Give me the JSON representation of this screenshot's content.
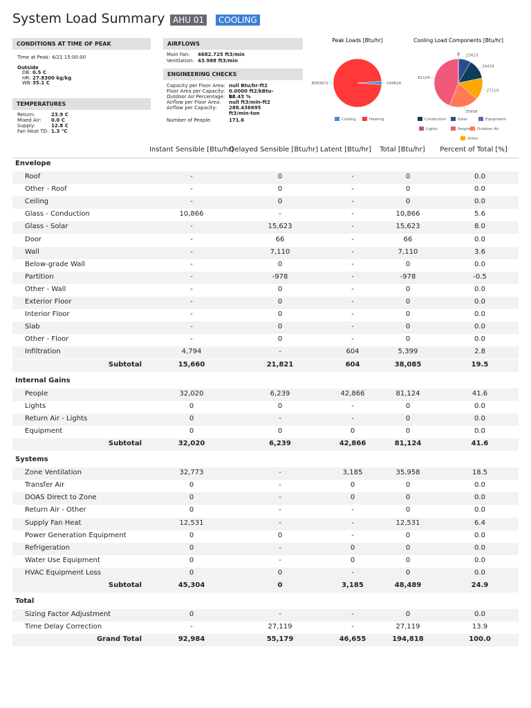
{
  "header": {
    "title": "System Load Summary",
    "badges": [
      "AHU 01",
      "COOLING"
    ]
  },
  "conditions": {
    "title": "CONDITIONS AT TIME OF PEAK",
    "time": "Time at Peak: 4/21 15:00:00",
    "outside_title": "Outside",
    "rows": [
      [
        "DB:",
        "0.5 C"
      ],
      [
        "HR:",
        "27.8300 kg/kg"
      ],
      [
        "WB:",
        "35.1 C"
      ]
    ]
  },
  "temperatures": {
    "title": "TEMPERATURES",
    "rows": [
      [
        "Return:",
        "23.9 C"
      ],
      [
        "Mixed Air:",
        "0.0 C"
      ],
      [
        "Supply:",
        "12.8 C"
      ],
      [
        "Fan Heat TD:",
        "1.3 °C"
      ]
    ]
  },
  "airflows": {
    "title": "AIRFLOWS",
    "rows": [
      [
        "Main Fan:",
        "4682.725 ft3/min"
      ],
      [
        "Ventilation:",
        "43.988 ft3/min"
      ]
    ]
  },
  "engineering_checks": {
    "title": "ENGINEERING CHECKS",
    "rows": [
      [
        "Capacity per Floor Area:",
        "null Btu/hr-ft2"
      ],
      [
        "Floor Area per Capacity:",
        "0.0000 ft2/kBtu-hr"
      ],
      [
        "Outdoor Air Percentage:",
        "23.43 %"
      ],
      [
        "Airflow per Floor Area:",
        "null ft3/min-ft2"
      ],
      [
        "Airflow per Capacity:",
        "288.436695 ft3/min-ton"
      ],
      [
        "Number of People:",
        "171.6"
      ]
    ]
  },
  "chart_data": [
    {
      "type": "pie",
      "title": "Peak Loads [Btu/hr]",
      "categories": [
        "Cooling",
        "Heating"
      ],
      "values": [
        194818,
        8583672
      ],
      "colors": [
        "#3d8ee0",
        "#ff3838"
      ]
    },
    {
      "type": "pie",
      "title": "Cooling Load Components [Btu/hr]",
      "categories": [
        "Conduction",
        "Solar",
        "Equipment",
        "Lights",
        "People",
        "Outdoor Air",
        "Other"
      ],
      "values": [
        24439,
        15623,
        0,
        0,
        81124,
        35958,
        27119
      ],
      "colors": [
        "#0d3d5a",
        "#2f4b8f",
        "#7a5aa6",
        "#c0509a",
        "#f0587a",
        "#ff7b55",
        "#ffa600"
      ]
    }
  ],
  "table": {
    "columns": [
      "Instant Sensible [Btu/hr]",
      "Delayed Sensible [Btu/hr]",
      "Latent [Btu/hr]",
      "Total [Btu/hr]",
      "Percent of Total [%]"
    ],
    "sections": [
      {
        "title": "Envelope",
        "rows": [
          [
            "Roof",
            "-",
            "0",
            "-",
            "0",
            "0.0"
          ],
          [
            "Other - Roof",
            "-",
            "0",
            "-",
            "0",
            "0.0"
          ],
          [
            "Ceiling",
            "-",
            "0",
            "-",
            "0",
            "0.0"
          ],
          [
            "Glass - Conduction",
            "10,866",
            "-",
            "-",
            "10,866",
            "5.6"
          ],
          [
            "Glass - Solar",
            "-",
            "15,623",
            "-",
            "15,623",
            "8.0"
          ],
          [
            "Door",
            "-",
            "66",
            "-",
            "66",
            "0.0"
          ],
          [
            "Wall",
            "-",
            "7,110",
            "-",
            "7,110",
            "3.6"
          ],
          [
            "Below-grade Wall",
            "-",
            "0",
            "-",
            "0",
            "0.0"
          ],
          [
            "Partition",
            "-",
            "-978",
            "-",
            "-978",
            "-0.5"
          ],
          [
            "Other - Wall",
            "-",
            "0",
            "-",
            "0",
            "0.0"
          ],
          [
            "Exterior Floor",
            "-",
            "0",
            "-",
            "0",
            "0.0"
          ],
          [
            "Interior Floor",
            "-",
            "0",
            "-",
            "0",
            "0.0"
          ],
          [
            "Slab",
            "-",
            "0",
            "-",
            "0",
            "0.0"
          ],
          [
            "Other - Floor",
            "-",
            "0",
            "-",
            "0",
            "0.0"
          ],
          [
            "Infiltration",
            "4,794",
            "-",
            "604",
            "5,399",
            "2.8"
          ]
        ],
        "subtotal": [
          "Subtotal",
          "15,660",
          "21,821",
          "604",
          "38,085",
          "19.5"
        ]
      },
      {
        "title": "Internal Gains",
        "rows": [
          [
            "People",
            "32,020",
            "6,239",
            "42,866",
            "81,124",
            "41.6"
          ],
          [
            "Lights",
            "0",
            "0",
            "-",
            "0",
            "0.0"
          ],
          [
            "Return Air - Lights",
            "0",
            "-",
            "-",
            "0",
            "0.0"
          ],
          [
            "Equipment",
            "0",
            "0",
            "0",
            "0",
            "0.0"
          ]
        ],
        "subtotal": [
          "Subtotal",
          "32,020",
          "6,239",
          "42,866",
          "81,124",
          "41.6"
        ]
      },
      {
        "title": "Systems",
        "rows": [
          [
            "Zone Ventilation",
            "32,773",
            "-",
            "3,185",
            "35,958",
            "18.5"
          ],
          [
            "Transfer Air",
            "0",
            "-",
            "0",
            "0",
            "0.0"
          ],
          [
            "DOAS Direct to Zone",
            "0",
            "-",
            "0",
            "0",
            "0.0"
          ],
          [
            "Return Air - Other",
            "0",
            "-",
            "-",
            "0",
            "0.0"
          ],
          [
            "Supply Fan Heat",
            "12,531",
            "-",
            "-",
            "12,531",
            "6.4"
          ],
          [
            "Power Generation Equipment",
            "0",
            "0",
            "-",
            "0",
            "0.0"
          ],
          [
            "Refrigeration",
            "0",
            "-",
            "0",
            "0",
            "0.0"
          ],
          [
            "Water Use Equipment",
            "0",
            "-",
            "0",
            "0",
            "0.0"
          ],
          [
            "HVAC Equipment Loss",
            "0",
            "0",
            "-",
            "0",
            "0.0"
          ]
        ],
        "subtotal": [
          "Subtotal",
          "45,304",
          "0",
          "3,185",
          "48,489",
          "24.9"
        ]
      },
      {
        "title": "Total",
        "rows": [
          [
            "Sizing Factor Adjustment",
            "0",
            "-",
            "-",
            "0",
            "0.0"
          ],
          [
            "Time Delay Correction",
            "-",
            "27,119",
            "-",
            "27,119",
            "13.9"
          ]
        ],
        "subtotal": [
          "Grand Total",
          "92,984",
          "55,179",
          "46,655",
          "194,818",
          "100.0"
        ]
      }
    ]
  }
}
